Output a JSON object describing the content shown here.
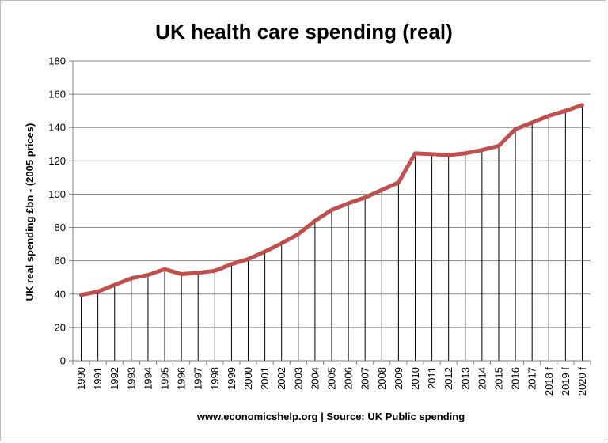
{
  "chart_data": {
    "type": "line",
    "title": "UK health care spending (real)",
    "xlabel": "www.economicshelp.org | Source: UK Public spending",
    "ylabel": "UK real spending £bn - (2005 prices)",
    "categories": [
      "1990",
      "1991",
      "1992",
      "1993",
      "1994",
      "1995",
      "1996",
      "1997",
      "1998",
      "1999",
      "2000",
      "2001",
      "2002",
      "2003",
      "2004",
      "2005",
      "2006",
      "2007",
      "2008",
      "2009",
      "2010",
      "2011",
      "2012",
      "2013",
      "2014",
      "2015",
      "2016",
      "2017",
      "2018 f",
      "2019 f",
      "2020 f"
    ],
    "series": [
      {
        "values": [
          39.5,
          41.5,
          45.5,
          49.5,
          51.5,
          55,
          52,
          52.8,
          54,
          58,
          61,
          65.5,
          70.5,
          76,
          84,
          90.5,
          94.5,
          98,
          102.5,
          107,
          124.5,
          124,
          123.5,
          124.5,
          126.5,
          129,
          139,
          143,
          147,
          150,
          153.5
        ]
      }
    ],
    "ylim": [
      0,
      180
    ],
    "yticks": [
      0,
      20,
      40,
      60,
      80,
      100,
      120,
      140,
      160,
      180
    ],
    "grid": true,
    "drop_lines": true,
    "line_color": "#c0504d",
    "grid_color": "#8c8c8c",
    "axis_color": "#7f7f7f"
  }
}
